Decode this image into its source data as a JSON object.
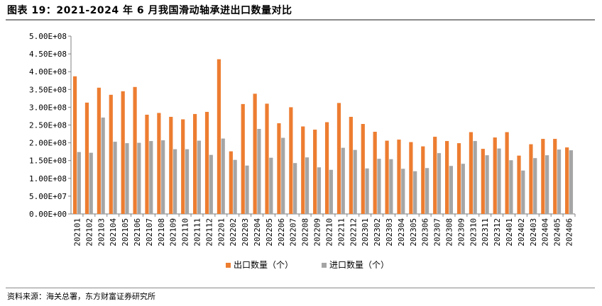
{
  "title": "图表 19：2021-2024 年 6 月我国滑动轴承进出口数量对比",
  "source": "资料来源：海关总署，东方财富证券研究所",
  "chart_data": {
    "type": "bar",
    "categories": [
      "202101",
      "202102",
      "202103",
      "202104",
      "202105",
      "202106",
      "202107",
      "202108",
      "202109",
      "202110",
      "202111",
      "202112",
      "202201",
      "202202",
      "202203",
      "202204",
      "202205",
      "202206",
      "202207",
      "202208",
      "202209",
      "202210",
      "202211",
      "202212",
      "202301",
      "202302",
      "202303",
      "202304",
      "202305",
      "202306",
      "202307",
      "202308",
      "202309",
      "202310",
      "202311",
      "202312",
      "202401",
      "202402",
      "202403",
      "202404",
      "202405",
      "202406"
    ],
    "series": [
      {
        "name": "出口数量（个）",
        "color": "#ED7D31",
        "values": [
          387000000.0,
          313000000.0,
          355000000.0,
          335000000.0,
          345000000.0,
          357000000.0,
          279000000.0,
          284000000.0,
          273000000.0,
          266000000.0,
          281000000.0,
          287000000.0,
          435000000.0,
          176000000.0,
          309000000.0,
          338000000.0,
          310000000.0,
          255000000.0,
          300000000.0,
          246000000.0,
          237000000.0,
          258000000.0,
          312000000.0,
          273000000.0,
          253000000.0,
          231000000.0,
          206000000.0,
          209000000.0,
          202000000.0,
          190000000.0,
          217000000.0,
          205000000.0,
          199000000.0,
          230000000.0,
          183000000.0,
          215000000.0,
          230000000.0,
          164000000.0,
          196000000.0,
          211000000.0,
          211000000.0,
          187000000.0
        ]
      },
      {
        "name": "进口数量（个）",
        "color": "#A5A5A5",
        "values": [
          174000000.0,
          172000000.0,
          271000000.0,
          203000000.0,
          199000000.0,
          200000000.0,
          205000000.0,
          207000000.0,
          182000000.0,
          182000000.0,
          206000000.0,
          166000000.0,
          212000000.0,
          152000000.0,
          136000000.0,
          239000000.0,
          158000000.0,
          214000000.0,
          143000000.0,
          159000000.0,
          131000000.0,
          124000000.0,
          186000000.0,
          180000000.0,
          128000000.0,
          155000000.0,
          154000000.0,
          127000000.0,
          120000000.0,
          129000000.0,
          171000000.0,
          135000000.0,
          141000000.0,
          205000000.0,
          165000000.0,
          184000000.0,
          151000000.0,
          122000000.0,
          157000000.0,
          165000000.0,
          181000000.0,
          179000000.0
        ]
      }
    ],
    "yticks": [
      "0.00E+00",
      "5.00E+07",
      "1.00E+08",
      "1.50E+08",
      "2.00E+08",
      "2.50E+08",
      "3.00E+08",
      "3.50E+08",
      "4.00E+08",
      "4.50E+08",
      "5.00E+08"
    ],
    "ylim": [
      0,
      500000000.0
    ],
    "grid": false,
    "legend_position": "bottom"
  }
}
